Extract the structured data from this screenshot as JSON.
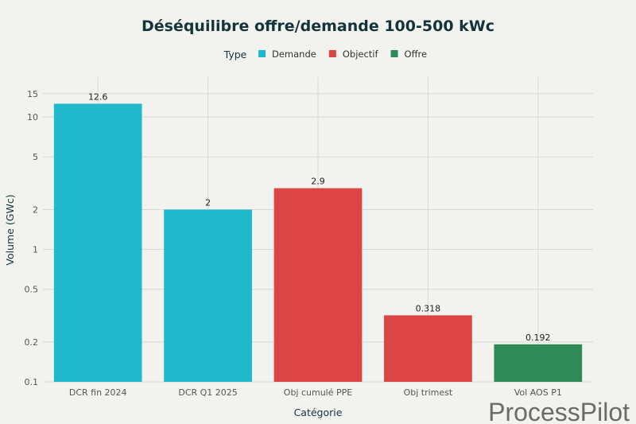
{
  "chart_data": {
    "type": "bar",
    "title": "Déséquilibre offre/demande 100-500 kWc",
    "xlabel": "Catégorie",
    "ylabel": "Volume (GWc)",
    "yscale": "log",
    "ylim": [
      0.1,
      20
    ],
    "yticks": [
      0.1,
      0.2,
      0.5,
      1,
      2,
      5,
      10,
      15
    ],
    "grid": true,
    "legend": {
      "title": "Type",
      "placement": "top",
      "entries": [
        {
          "name": "Demande",
          "color": "#1fb8cd"
        },
        {
          "name": "Objectif",
          "color": "#db4545"
        },
        {
          "name": "Offre",
          "color": "#2e8b57"
        }
      ]
    },
    "categories": [
      "DCR fin 2024",
      "DCR Q1 2025",
      "Obj cumulé PPE",
      "Obj trimest",
      "Vol AOS P1"
    ],
    "values": [
      12.6,
      2,
      2.9,
      0.318,
      0.192
    ],
    "labels": [
      "12.6",
      "2",
      "2.9",
      "0.318",
      "0.192"
    ],
    "types": [
      "Demande",
      "Demande",
      "Objectif",
      "Objectif",
      "Offre"
    ]
  },
  "watermark": "ProcessPilot"
}
